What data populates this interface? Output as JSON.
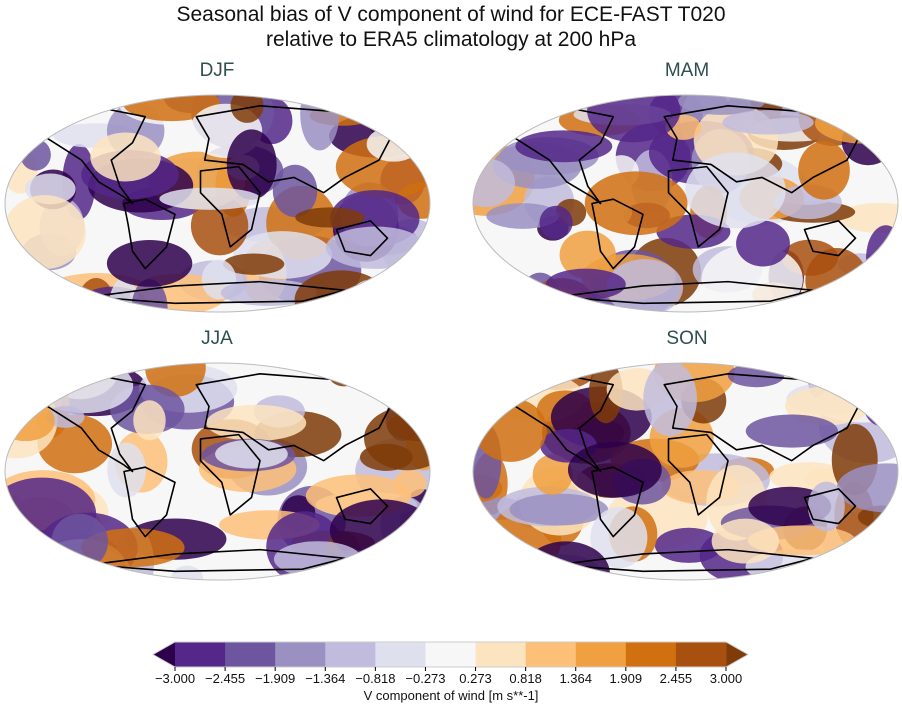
{
  "title_line1": "Seasonal bias of V component of wind for ECE-FAST T020",
  "title_line2": "relative to ERA5 climatology at 200 hPa",
  "panels": [
    {
      "label": "DJF"
    },
    {
      "label": "MAM"
    },
    {
      "label": "JJA"
    },
    {
      "label": "SON"
    }
  ],
  "colorbar": {
    "label": "V component of wind [m s**-1]",
    "ticks": [
      "−3.000",
      "−2.455",
      "−1.909",
      "−1.364",
      "−0.818",
      "−0.273",
      "0.273",
      "0.818",
      "1.364",
      "1.909",
      "2.455",
      "3.000"
    ],
    "under_color": "#2d004b",
    "over_color": "#7f3b08",
    "colors": [
      "#542788",
      "#6d55a0",
      "#9a90c2",
      "#c1bcdd",
      "#dfe0ee",
      "#f7f7f7",
      "#fde4c0",
      "#fdc078",
      "#f0a040",
      "#d07010",
      "#a85010"
    ],
    "extend": "both",
    "colormap": "PuOr_r"
  },
  "projection": "Robinson"
}
